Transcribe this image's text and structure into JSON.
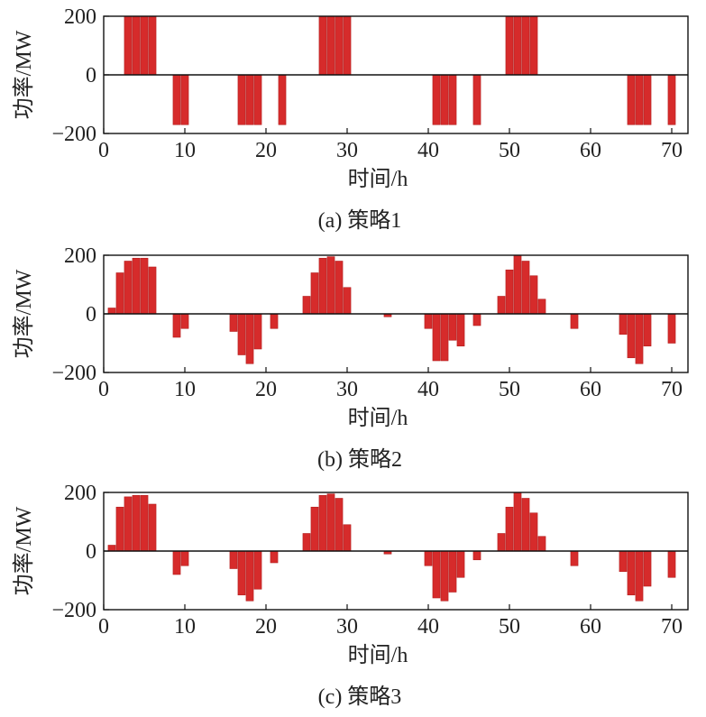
{
  "bar_color": "#d62b2b",
  "bar_edge_color": "#b21e1e",
  "chart_data": [
    {
      "type": "bar",
      "caption": "(a) 策略1",
      "xlabel": "时间/h",
      "ylabel": "功率/MW",
      "xlim": [
        0,
        72
      ],
      "ylim": [
        -200,
        200
      ],
      "xticks": [
        0,
        10,
        20,
        30,
        40,
        50,
        60,
        70
      ],
      "yticks": [
        -200,
        0,
        200
      ],
      "grid": false,
      "x": [
        1,
        2,
        3,
        4,
        5,
        6,
        7,
        8,
        9,
        10,
        11,
        12,
        13,
        14,
        15,
        16,
        17,
        18,
        19,
        20,
        21,
        22,
        23,
        24,
        25,
        26,
        27,
        28,
        29,
        30,
        31,
        32,
        33,
        34,
        35,
        36,
        37,
        38,
        39,
        40,
        41,
        42,
        43,
        44,
        45,
        46,
        47,
        48,
        49,
        50,
        51,
        52,
        53,
        54,
        55,
        56,
        57,
        58,
        59,
        60,
        61,
        62,
        63,
        64,
        65,
        66,
        67,
        68,
        69,
        70,
        71
      ],
      "values": [
        0,
        0,
        200,
        200,
        200,
        200,
        0,
        0,
        -170,
        -170,
        0,
        0,
        0,
        0,
        0,
        0,
        -170,
        -170,
        -170,
        0,
        0,
        -170,
        0,
        0,
        0,
        0,
        200,
        200,
        200,
        200,
        0,
        0,
        0,
        0,
        0,
        0,
        0,
        0,
        0,
        0,
        -170,
        -170,
        -170,
        0,
        0,
        -170,
        0,
        0,
        0,
        200,
        200,
        200,
        200,
        0,
        0,
        0,
        0,
        0,
        0,
        0,
        0,
        0,
        0,
        0,
        -170,
        -170,
        -170,
        0,
        0,
        -170,
        0
      ]
    },
    {
      "type": "bar",
      "caption": "(b) 策略2",
      "xlabel": "时间/h",
      "ylabel": "功率/MW",
      "xlim": [
        0,
        72
      ],
      "ylim": [
        -200,
        200
      ],
      "xticks": [
        0,
        10,
        20,
        30,
        40,
        50,
        60,
        70
      ],
      "yticks": [
        -200,
        0,
        200
      ],
      "grid": false,
      "x": [
        1,
        2,
        3,
        4,
        5,
        6,
        7,
        8,
        9,
        10,
        11,
        12,
        13,
        14,
        15,
        16,
        17,
        18,
        19,
        20,
        21,
        22,
        23,
        24,
        25,
        26,
        27,
        28,
        29,
        30,
        31,
        32,
        33,
        34,
        35,
        36,
        37,
        38,
        39,
        40,
        41,
        42,
        43,
        44,
        45,
        46,
        47,
        48,
        49,
        50,
        51,
        52,
        53,
        54,
        55,
        56,
        57,
        58,
        59,
        60,
        61,
        62,
        63,
        64,
        65,
        66,
        67,
        68,
        69,
        70,
        71
      ],
      "values": [
        20,
        140,
        180,
        190,
        190,
        160,
        0,
        0,
        -80,
        -50,
        0,
        0,
        0,
        0,
        0,
        -60,
        -140,
        -170,
        -120,
        0,
        -50,
        0,
        0,
        0,
        60,
        140,
        190,
        195,
        180,
        90,
        0,
        0,
        0,
        0,
        -10,
        0,
        0,
        0,
        0,
        -50,
        -160,
        -160,
        -90,
        -110,
        0,
        -40,
        0,
        0,
        60,
        150,
        200,
        180,
        130,
        50,
        0,
        0,
        0,
        -50,
        0,
        0,
        0,
        0,
        0,
        -70,
        -150,
        -170,
        -110,
        0,
        0,
        -100,
        0
      ]
    },
    {
      "type": "bar",
      "caption": "(c) 策略3",
      "xlabel": "时间/h",
      "ylabel": "功率/MW",
      "xlim": [
        0,
        72
      ],
      "ylim": [
        -200,
        200
      ],
      "xticks": [
        0,
        10,
        20,
        30,
        40,
        50,
        60,
        70
      ],
      "yticks": [
        -200,
        0,
        200
      ],
      "grid": false,
      "x": [
        1,
        2,
        3,
        4,
        5,
        6,
        7,
        8,
        9,
        10,
        11,
        12,
        13,
        14,
        15,
        16,
        17,
        18,
        19,
        20,
        21,
        22,
        23,
        24,
        25,
        26,
        27,
        28,
        29,
        30,
        31,
        32,
        33,
        34,
        35,
        36,
        37,
        38,
        39,
        40,
        41,
        42,
        43,
        44,
        45,
        46,
        47,
        48,
        49,
        50,
        51,
        52,
        53,
        54,
        55,
        56,
        57,
        58,
        59,
        60,
        61,
        62,
        63,
        64,
        65,
        66,
        67,
        68,
        69,
        70,
        71
      ],
      "values": [
        20,
        150,
        185,
        190,
        190,
        160,
        0,
        0,
        -80,
        -50,
        0,
        0,
        0,
        0,
        0,
        -60,
        -150,
        -170,
        -130,
        0,
        -40,
        0,
        0,
        0,
        60,
        150,
        190,
        195,
        180,
        90,
        0,
        0,
        0,
        0,
        -10,
        0,
        0,
        0,
        0,
        -50,
        -160,
        -170,
        -140,
        -90,
        0,
        -30,
        0,
        0,
        60,
        150,
        200,
        180,
        130,
        50,
        0,
        0,
        0,
        -50,
        0,
        0,
        0,
        0,
        0,
        -70,
        -150,
        -170,
        -120,
        0,
        0,
        -90,
        0
      ]
    }
  ]
}
